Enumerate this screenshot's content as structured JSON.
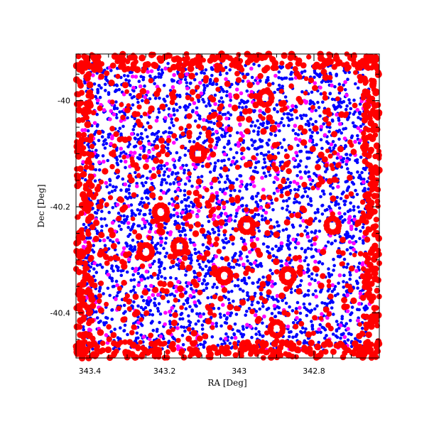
{
  "chart_data": {
    "type": "scatter",
    "title": "",
    "xlabel": "RA [Deg]",
    "ylabel": "Dec [Deg]",
    "x_axis_reversed": true,
    "xlim": [
      343.437,
      342.625
    ],
    "ylim": [
      -40.485,
      -39.912
    ],
    "xticks": [
      {
        "value": 343.4,
        "label": "343.4"
      },
      {
        "value": 343.2,
        "label": "343.2"
      },
      {
        "value": 343.0,
        "label": "343"
      },
      {
        "value": 342.8,
        "label": "342.8"
      }
    ],
    "yticks": [
      {
        "value": -40.0,
        "label": "-40"
      },
      {
        "value": -40.2,
        "label": "-40.2"
      },
      {
        "value": -40.4,
        "label": "-40.4"
      }
    ],
    "grid": false,
    "legend": "none",
    "series": [
      {
        "color": "#0000ff",
        "marker": "dot",
        "description_points": "dense uniform field of small points",
        "count_estimate": 3000,
        "extent": {
          "ra": [
            343.42,
            342.65
          ],
          "dec": [
            -40.47,
            -39.93
          ]
        }
      },
      {
        "color": "#ff00ff",
        "marker": "dot",
        "count_estimate": 450,
        "extent": {
          "ra": [
            343.42,
            342.65
          ],
          "dec": [
            -40.47,
            -39.93
          ]
        }
      },
      {
        "color": "#ff0000",
        "marker": "circle",
        "count_estimate": 1400,
        "extent": {
          "ra": [
            343.437,
            342.625
          ],
          "dec": [
            -40.485,
            -39.912
          ]
        },
        "notes_seen": "densest along the field border; rings around bright sources"
      }
    ],
    "bright_source_rings": [
      {
        "ra": 342.93,
        "dec": -39.995
      },
      {
        "ra": 342.98,
        "dec": -40.235
      },
      {
        "ra": 343.16,
        "dec": -40.275
      },
      {
        "ra": 343.21,
        "dec": -40.21
      },
      {
        "ra": 343.25,
        "dec": -40.285
      },
      {
        "ra": 343.11,
        "dec": -40.1
      },
      {
        "ra": 342.75,
        "dec": -40.235
      },
      {
        "ra": 342.87,
        "dec": -40.33
      },
      {
        "ra": 342.9,
        "dec": -40.43
      },
      {
        "ra": 343.04,
        "dec": -40.33
      }
    ]
  }
}
